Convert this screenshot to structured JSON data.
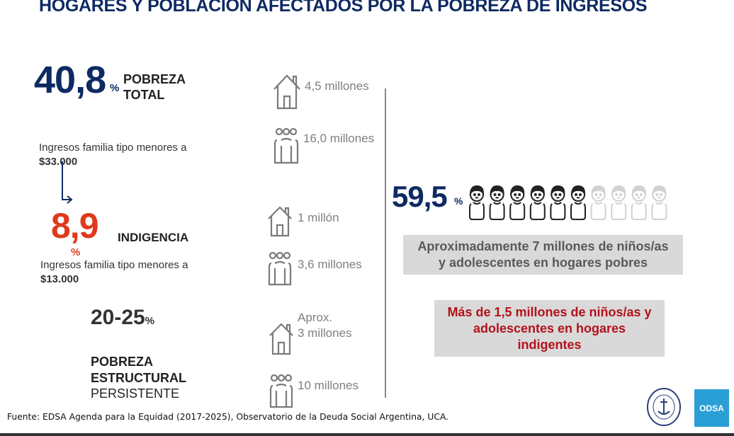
{
  "title": "HOGARES Y POBLACION AFECTADOS POR LA POBREZA DE INGRESOS",
  "pobreza_total": {
    "value": "40,8",
    "unit": "%",
    "label_1": "POBREZA",
    "label_2": "TOTAL",
    "income_text": "Ingresos familia tipo menores a",
    "income_value": "$33.000",
    "households": "4,5 millones",
    "people": "16,0 millones"
  },
  "indigencia": {
    "value": "8,9",
    "unit": "%",
    "label": "INDIGENCIA",
    "income_text": "Ingresos familia tipo menores a",
    "income_value": "$13.000",
    "households": "1 millón",
    "people": "3,6 millones"
  },
  "estructural": {
    "value": "20-25",
    "unit": "%",
    "label_1": "POBREZA",
    "label_2": "ESTRUCTURAL",
    "label_3": "PERSISTENTE",
    "households_1": "Aprox.",
    "households_2": "3 millones",
    "people": "10 millones"
  },
  "children": {
    "value": "59,5",
    "unit": "%",
    "fraction": 0.595,
    "icon_count": 10,
    "poor_text_1": "Aproximadamente 7 millones de niños/as",
    "poor_text_2": "y adolescentes en hogares pobres",
    "indigent_text_1": "Más de 1,5 millones de niños/as y",
    "indigent_text_2": "adolescentes en hogares",
    "indigent_text_3": "indigentes"
  },
  "footer": "Fuente: EDSA Agenda para la Equidad (2017-2025), Observatorio de la Deuda Social Argentina, UCA.",
  "logos": {
    "odsa": "ODSA",
    "seal": "UNIVERSIDAD CATÓLICA ARGENTINA"
  },
  "colors": {
    "navy": "#0e2a63",
    "red": "#e0391c",
    "dark_red": "#b3121a",
    "box": "#d9d9d9",
    "odsa": "#2a9fd6"
  }
}
